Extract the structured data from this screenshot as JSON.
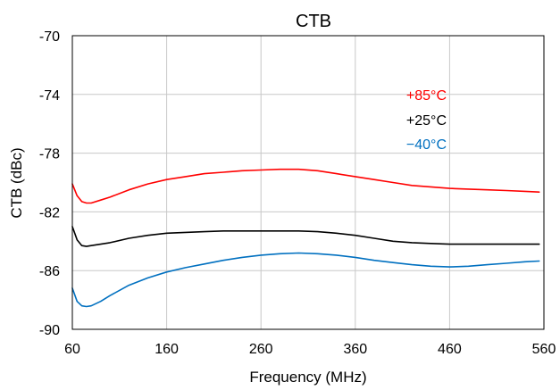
{
  "chart_data": {
    "type": "line",
    "title": "CTB",
    "xlabel": "Frequency (MHz)",
    "ylabel": "CTB (dBc)",
    "xlim": [
      60,
      560
    ],
    "ylim": [
      -90,
      -70
    ],
    "xticks": [
      "60",
      "160",
      "260",
      "360",
      "460",
      "560"
    ],
    "yticks": [
      "-70",
      "-74",
      "-78",
      "-82",
      "-86",
      "-90"
    ],
    "grid": true,
    "legend_position": "top-right",
    "series": [
      {
        "name": "+85°C",
        "color": "#ff0000",
        "x": [
          60,
          65,
          70,
          75,
          80,
          90,
          100,
          120,
          140,
          160,
          180,
          200,
          220,
          240,
          260,
          280,
          300,
          320,
          340,
          360,
          380,
          400,
          420,
          440,
          460,
          480,
          500,
          520,
          540,
          555
        ],
        "y": [
          -80.1,
          -80.9,
          -81.3,
          -81.4,
          -81.4,
          -81.2,
          -81.0,
          -80.5,
          -80.1,
          -79.8,
          -79.6,
          -79.4,
          -79.3,
          -79.2,
          -79.15,
          -79.1,
          -79.1,
          -79.2,
          -79.4,
          -79.6,
          -79.8,
          -80.0,
          -80.2,
          -80.3,
          -80.4,
          -80.45,
          -80.5,
          -80.55,
          -80.6,
          -80.65
        ]
      },
      {
        "name": "+25°C",
        "color": "#000000",
        "x": [
          60,
          65,
          70,
          75,
          80,
          90,
          100,
          120,
          140,
          160,
          180,
          200,
          220,
          240,
          260,
          280,
          300,
          320,
          340,
          360,
          380,
          400,
          420,
          440,
          460,
          480,
          500,
          520,
          540,
          555
        ],
        "y": [
          -83.0,
          -83.9,
          -84.3,
          -84.35,
          -84.3,
          -84.2,
          -84.1,
          -83.8,
          -83.6,
          -83.45,
          -83.4,
          -83.35,
          -83.3,
          -83.3,
          -83.3,
          -83.3,
          -83.3,
          -83.35,
          -83.45,
          -83.6,
          -83.8,
          -84.0,
          -84.1,
          -84.15,
          -84.2,
          -84.2,
          -84.2,
          -84.2,
          -84.2,
          -84.2
        ]
      },
      {
        "name": "−40°C",
        "color": "#0070c0",
        "x": [
          60,
          65,
          70,
          75,
          80,
          90,
          100,
          120,
          140,
          160,
          180,
          200,
          220,
          240,
          260,
          280,
          300,
          320,
          340,
          360,
          380,
          400,
          420,
          440,
          460,
          480,
          500,
          520,
          540,
          555
        ],
        "y": [
          -87.2,
          -88.1,
          -88.4,
          -88.45,
          -88.4,
          -88.1,
          -87.7,
          -87.0,
          -86.5,
          -86.1,
          -85.8,
          -85.55,
          -85.3,
          -85.1,
          -84.95,
          -84.85,
          -84.8,
          -84.85,
          -84.95,
          -85.1,
          -85.3,
          -85.45,
          -85.6,
          -85.7,
          -85.75,
          -85.7,
          -85.6,
          -85.5,
          -85.4,
          -85.35
        ]
      }
    ]
  }
}
